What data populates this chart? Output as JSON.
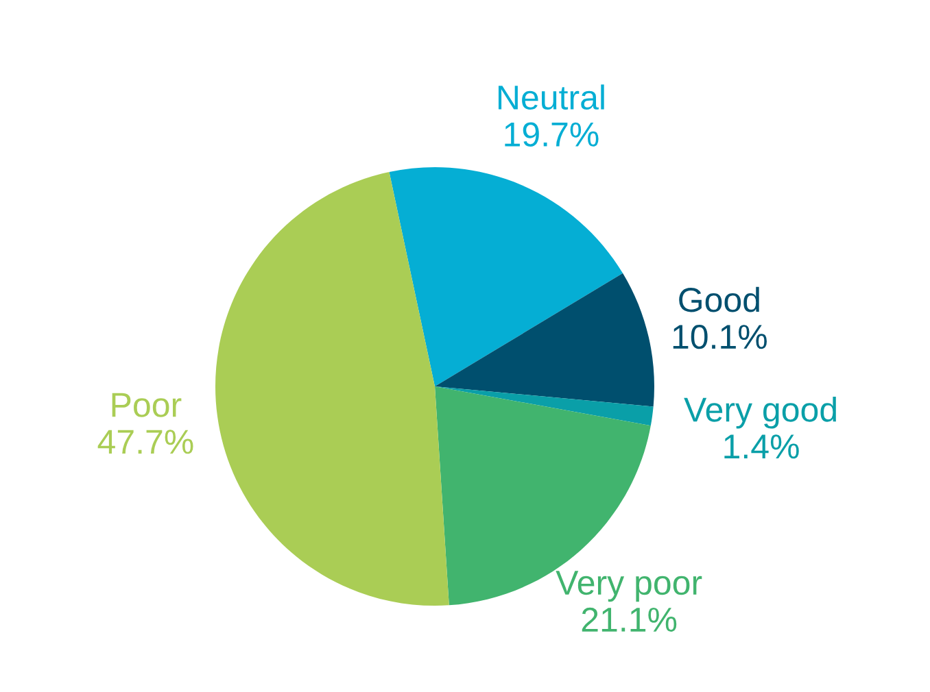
{
  "chart_data": {
    "type": "pie",
    "categories": [
      "Neutral",
      "Good",
      "Very good",
      "Very poor",
      "Poor"
    ],
    "values": [
      19.7,
      10.1,
      1.4,
      21.1,
      47.7
    ],
    "value_labels": [
      "19.7%",
      "10.1%",
      "1.4%",
      "21.1%",
      "47.7%"
    ],
    "colors": [
      "#05aed4",
      "#004f6e",
      "#0a9fa8",
      "#41b46e",
      "#aacd55"
    ]
  }
}
